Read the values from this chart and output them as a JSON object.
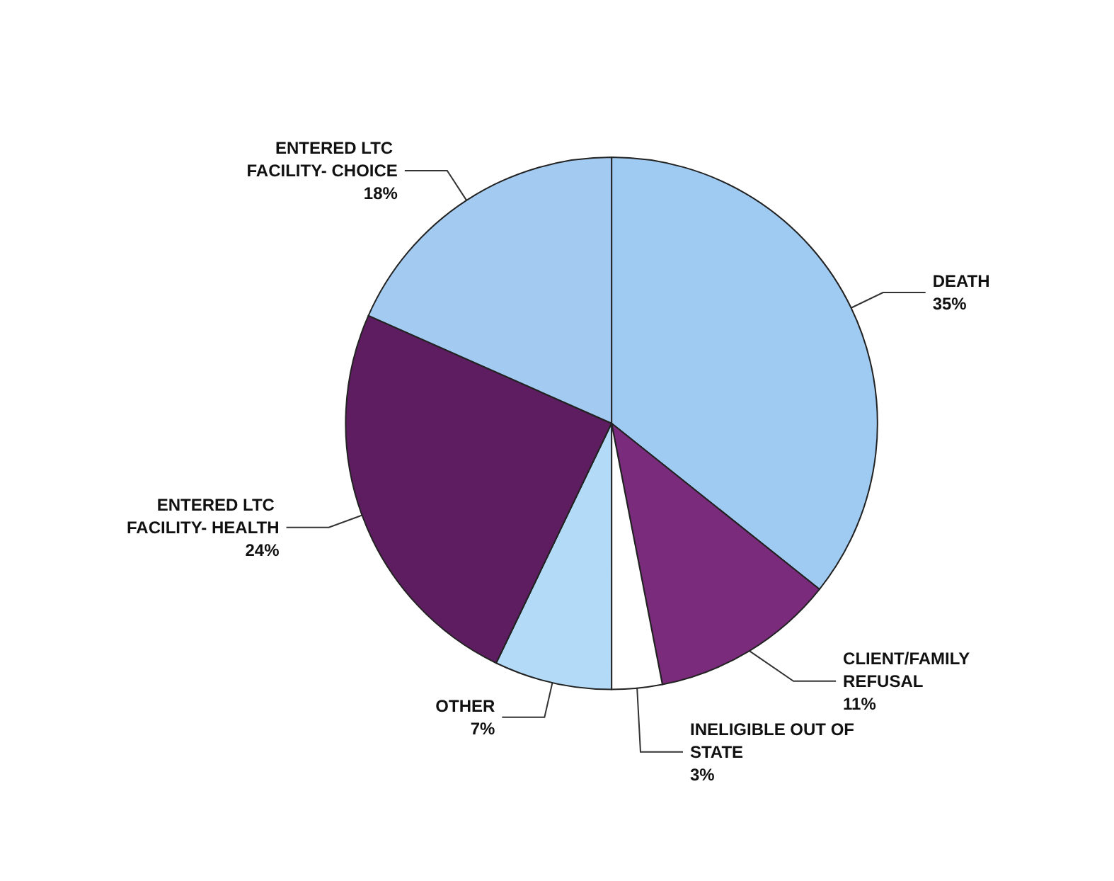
{
  "chart_data": {
    "type": "pie",
    "categories": [
      "DEATH",
      "CLIENT/FAMILY REFUSAL",
      "INELIGIBLE OUT OF STATE",
      "OTHER",
      "ENTERED LTC FACILITY- HEALTH",
      "ENTERED LTC FACILITY- CHOICE"
    ],
    "values": [
      35,
      11,
      3,
      7,
      24,
      18
    ],
    "value_labels": [
      "35%",
      "11%",
      "3%",
      "7%",
      "24%",
      "18%"
    ],
    "colors": [
      "#9fcbf2",
      "#7b2b7b",
      "#ffffff",
      "#b3dbf7",
      "#5e1d60",
      "#a3cbf2"
    ],
    "legend": false
  }
}
